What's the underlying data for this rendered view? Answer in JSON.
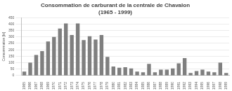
{
  "chart_data": {
    "type": "bar",
    "title": "Consommation de carburant de la centrale de Chavalon",
    "subtitle": "(1965 - 1999)",
    "y_label": "Consommation [kt]",
    "categories": [
      "1965",
      "1966",
      "1967",
      "1968",
      "1969",
      "1970",
      "1971",
      "1972",
      "1973",
      "1974",
      "1975",
      "1976",
      "1977",
      "1978",
      "1979",
      "1980",
      "1981",
      "1982",
      "1983",
      "1984",
      "1985",
      "1986",
      "1987",
      "1988",
      "1989",
      "1990",
      "1991",
      "1992",
      "1993",
      "1994",
      "1995",
      "1996",
      "1997",
      "1998",
      "1999"
    ],
    "values": [
      30,
      100,
      160,
      190,
      265,
      300,
      365,
      405,
      315,
      405,
      275,
      305,
      280,
      315,
      145,
      70,
      60,
      65,
      55,
      30,
      25,
      90,
      25,
      45,
      45,
      55,
      95,
      135,
      20,
      35,
      45,
      30,
      25,
      100,
      20
    ],
    "color": "#7f7f7f",
    "ylim": [
      0,
      450
    ],
    "yticks": [
      0,
      50,
      100,
      150,
      200,
      250,
      300,
      350,
      400,
      450
    ],
    "grid": true
  }
}
